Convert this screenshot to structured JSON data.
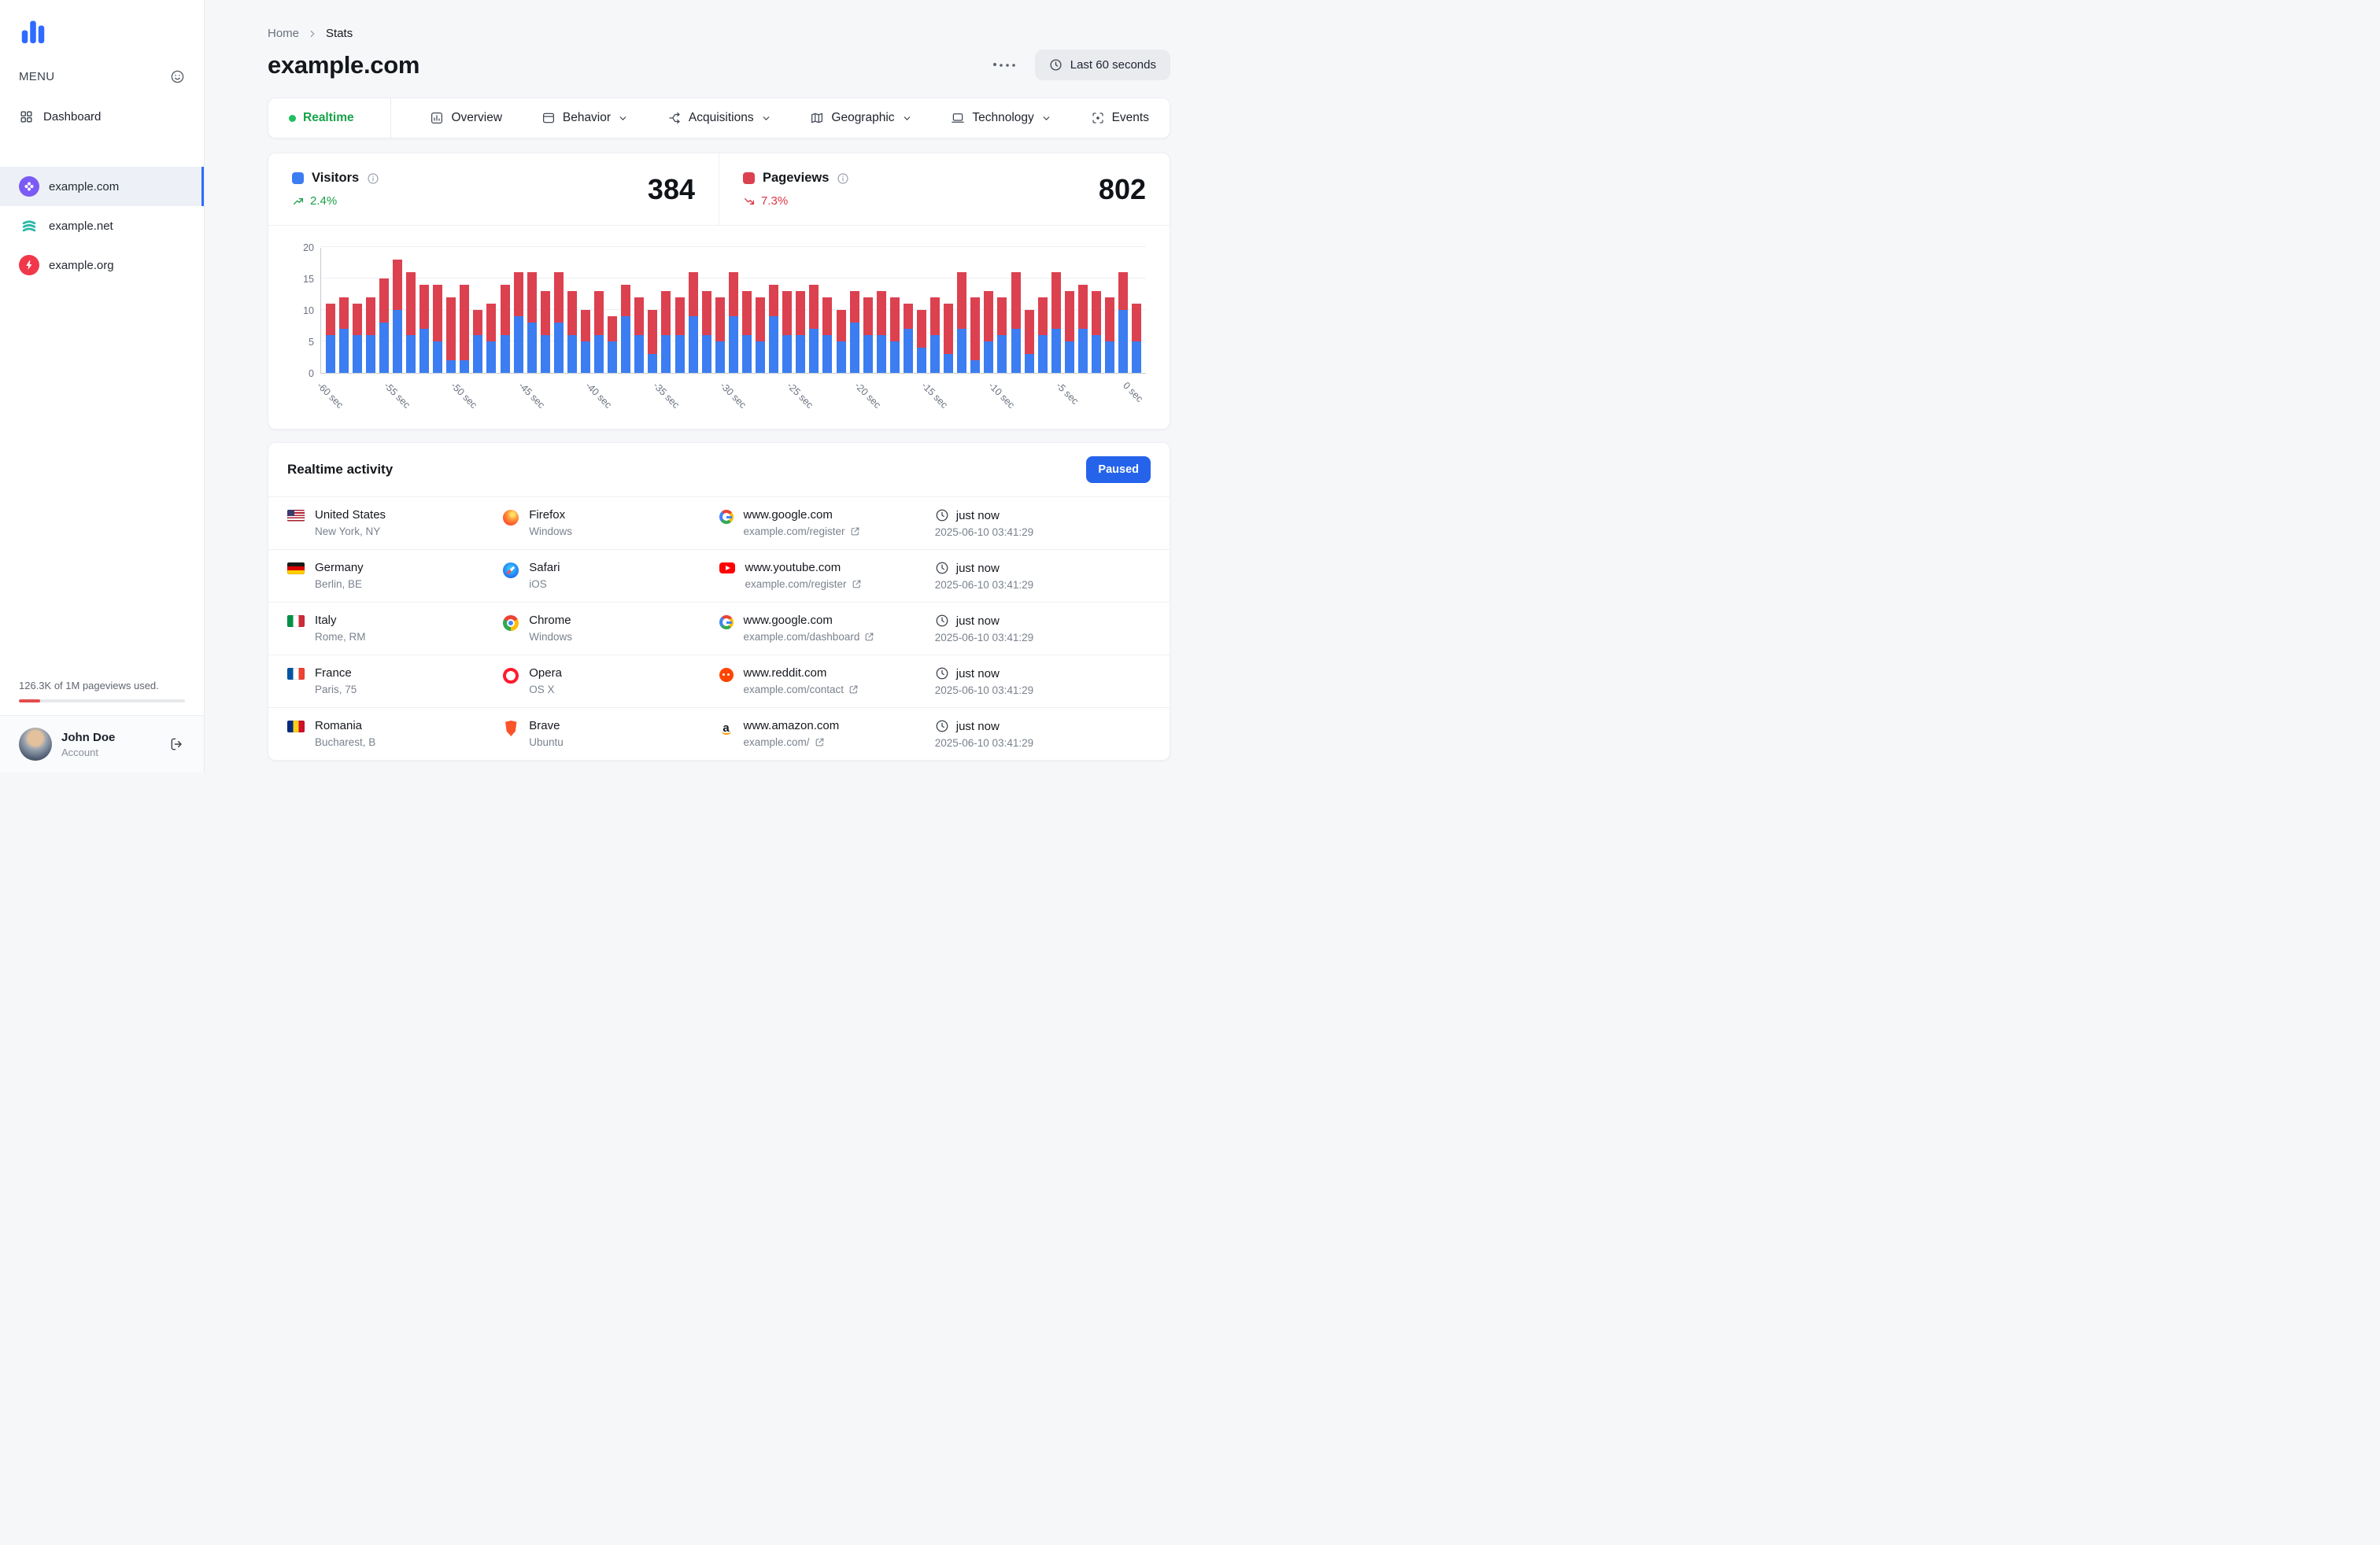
{
  "colors": {
    "accent": "#2563eb",
    "green": "#17a34a",
    "red_down": "#dc3545"
  },
  "sidebar": {
    "menu_label": "MENU",
    "dashboard_label": "Dashboard",
    "sites": [
      {
        "name": "example.com",
        "active": true
      },
      {
        "name": "example.net",
        "active": false
      },
      {
        "name": "example.org",
        "active": false
      }
    ],
    "usage": {
      "text": "126.3K of 1M pageviews used.",
      "percent": 13
    },
    "user": {
      "name": "John Doe",
      "role": "Account"
    }
  },
  "header": {
    "breadcrumb": [
      "Home",
      "Stats"
    ],
    "title": "example.com",
    "time_range_label": "Last 60 seconds"
  },
  "tabs": [
    {
      "label": "Realtime"
    },
    {
      "label": "Overview"
    },
    {
      "label": "Behavior"
    },
    {
      "label": "Acquisitions"
    },
    {
      "label": "Geographic"
    },
    {
      "label": "Technology"
    },
    {
      "label": "Events"
    }
  ],
  "stats": [
    {
      "label": "Visitors",
      "value": "384",
      "delta": "2.4%",
      "direction": "up",
      "color": "#3c7df2"
    },
    {
      "label": "Pageviews",
      "value": "802",
      "delta": "7.3%",
      "direction": "down",
      "color": "#dc4150"
    }
  ],
  "chart_data": {
    "type": "bar",
    "stacked": true,
    "title": "Realtime visitors and pageviews, last 60 seconds",
    "x_unit": "seconds ago",
    "tick_labels": [
      "-60 sec",
      "-55 sec",
      "-50 sec",
      "-45 sec",
      "-40 sec",
      "-35 sec",
      "-30 sec",
      "-25 sec",
      "-20 sec",
      "-15 sec",
      "-10 sec",
      "-5 sec",
      "0 sec"
    ],
    "ylim": [
      0,
      20
    ],
    "yticks": [
      0,
      5,
      10,
      15,
      20
    ],
    "grid": true,
    "legend_position": "none",
    "series": [
      {
        "name": "Visitors",
        "color": "#3c7df2",
        "values": [
          6,
          7,
          6,
          6,
          8,
          10,
          6,
          7,
          5,
          2,
          2,
          6,
          5,
          6,
          9,
          8,
          6,
          8,
          6,
          5,
          6,
          5,
          9,
          6,
          3,
          6,
          6,
          9,
          6,
          5,
          9,
          6,
          5,
          9,
          6,
          6,
          7,
          6,
          5,
          8,
          6,
          6,
          5,
          7,
          4,
          6,
          3,
          7,
          2,
          5,
          6,
          7,
          3,
          6,
          7,
          5,
          7,
          6,
          5,
          10,
          5
        ]
      },
      {
        "name": "Pageviews",
        "color": "#dc4150",
        "values": [
          5,
          5,
          5,
          6,
          7,
          8,
          10,
          7,
          9,
          10,
          12,
          4,
          6,
          8,
          7,
          8,
          7,
          8,
          7,
          5,
          7,
          4,
          5,
          6,
          7,
          7,
          6,
          7,
          7,
          7,
          7,
          7,
          7,
          5,
          7,
          7,
          7,
          6,
          5,
          5,
          6,
          7,
          7,
          4,
          6,
          6,
          8,
          9,
          10,
          8,
          6,
          9,
          7,
          6,
          9,
          8,
          7,
          7,
          7,
          6,
          6
        ]
      }
    ]
  },
  "activity": {
    "title": "Realtime activity",
    "paused_label": "Paused",
    "rows": [
      {
        "country": "United States",
        "flag": "us",
        "city": "New York, NY",
        "browser": "Firefox",
        "browser_icon": "firefox",
        "os": "Windows",
        "referrer": "www.google.com",
        "referrer_icon": "google",
        "page": "example.com/register",
        "when": "just now",
        "timestamp": "2025-06-10 03:41:29"
      },
      {
        "country": "Germany",
        "flag": "de",
        "city": "Berlin, BE",
        "browser": "Safari",
        "browser_icon": "safari",
        "os": "iOS",
        "referrer": "www.youtube.com",
        "referrer_icon": "youtube",
        "page": "example.com/register",
        "when": "just now",
        "timestamp": "2025-06-10 03:41:29"
      },
      {
        "country": "Italy",
        "flag": "it",
        "city": "Rome, RM",
        "browser": "Chrome",
        "browser_icon": "chrome",
        "os": "Windows",
        "referrer": "www.google.com",
        "referrer_icon": "google",
        "page": "example.com/dashboard",
        "when": "just now",
        "timestamp": "2025-06-10 03:41:29"
      },
      {
        "country": "France",
        "flag": "fr",
        "city": "Paris, 75",
        "browser": "Opera",
        "browser_icon": "opera",
        "os": "OS X",
        "referrer": "www.reddit.com",
        "referrer_icon": "reddit",
        "page": "example.com/contact",
        "when": "just now",
        "timestamp": "2025-06-10 03:41:29"
      },
      {
        "country": "Romania",
        "flag": "ro",
        "city": "Bucharest, B",
        "browser": "Brave",
        "browser_icon": "brave",
        "os": "Ubuntu",
        "referrer": "www.amazon.com",
        "referrer_icon": "amazon",
        "page": "example.com/",
        "when": "just now",
        "timestamp": "2025-06-10 03:41:29"
      }
    ]
  }
}
